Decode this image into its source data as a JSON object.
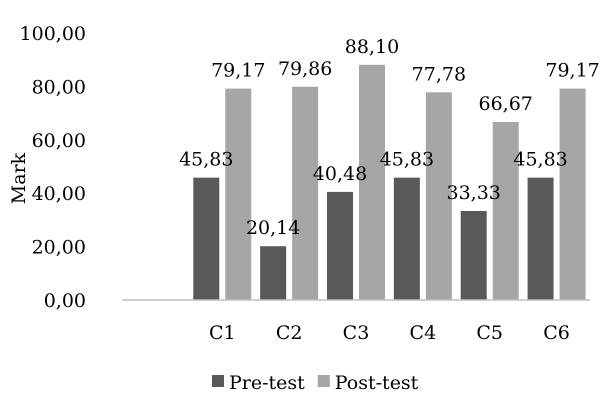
{
  "chart_data": {
    "type": "bar",
    "categories": [
      "",
      "C1",
      "C2",
      "C3",
      "C4",
      "C5",
      "C6"
    ],
    "series": [
      {
        "name": "Pre-test",
        "color": "#595959",
        "values": [
          null,
          45.83,
          20.14,
          40.48,
          45.83,
          33.33,
          45.83
        ],
        "labels": [
          "",
          "45,83",
          "20,14",
          "40,48",
          "45,83",
          "33,33",
          "45,83"
        ]
      },
      {
        "name": "Post-test",
        "color": "#a6a6a6",
        "values": [
          null,
          79.17,
          79.86,
          88.1,
          77.78,
          66.67,
          79.17
        ],
        "labels": [
          "",
          "79,17",
          "79,86",
          "88,10",
          "77,78",
          "66,67",
          "79,17"
        ]
      }
    ],
    "ylabel": "Mark",
    "ylim": [
      0,
      100
    ],
    "yticks": [
      0,
      20,
      40,
      60,
      80,
      100
    ],
    "ytick_labels": [
      "0,00",
      "20,00",
      "40,00",
      "60,00",
      "80,00",
      "100,00"
    ],
    "grid": false,
    "legend": "bottom",
    "axis_color": "#bfbfbf"
  }
}
